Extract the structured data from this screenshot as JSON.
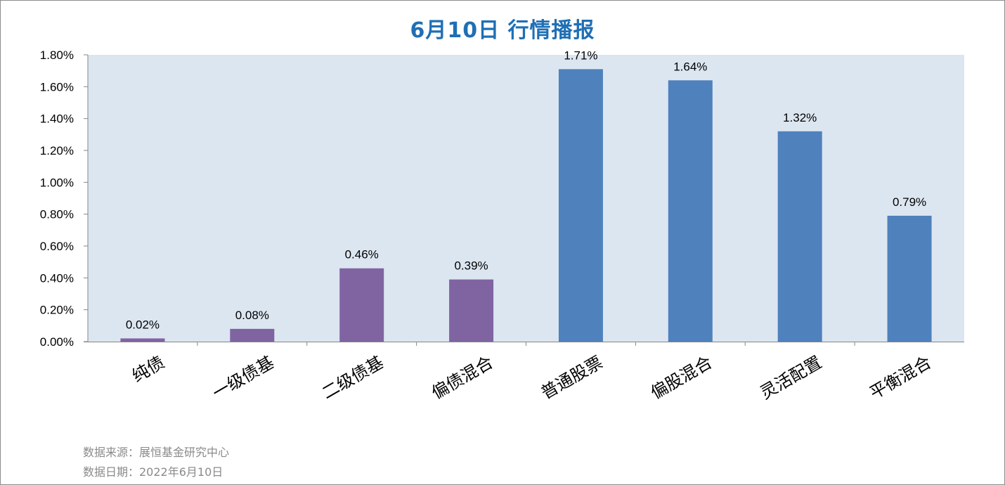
{
  "chart_data": {
    "type": "bar",
    "title": "6月10日  行情播报",
    "categories": [
      "纯债",
      "一级债基",
      "二级债基",
      "偏债混合",
      "普通股票",
      "偏股混合",
      "灵活配置",
      "平衡混合"
    ],
    "values": [
      0.02,
      0.08,
      0.46,
      0.39,
      1.71,
      1.64,
      1.32,
      0.79
    ],
    "data_labels": [
      "0.02%",
      "0.08%",
      "0.46%",
      "0.39%",
      "1.71%",
      "1.64%",
      "1.32%",
      "0.79%"
    ],
    "bar_colors": [
      "#8064a2",
      "#8064a2",
      "#8064a2",
      "#8064a2",
      "#4f81bd",
      "#4f81bd",
      "#4f81bd",
      "#4f81bd"
    ],
    "ylim": [
      0,
      1.8
    ],
    "yticks": [
      0,
      0.2,
      0.4,
      0.6,
      0.8,
      1.0,
      1.2,
      1.4,
      1.6,
      1.8
    ],
    "ytick_labels": [
      "0.00%",
      "0.20%",
      "0.40%",
      "0.60%",
      "0.80%",
      "1.00%",
      "1.20%",
      "1.40%",
      "1.60%",
      "1.80%"
    ],
    "plot_background": "#dce6f1",
    "grid": false,
    "xlabel": "",
    "ylabel": ""
  },
  "footer": {
    "source": "数据来源：展恒基金研究中心",
    "date": "数据日期：2022年6月10日"
  }
}
